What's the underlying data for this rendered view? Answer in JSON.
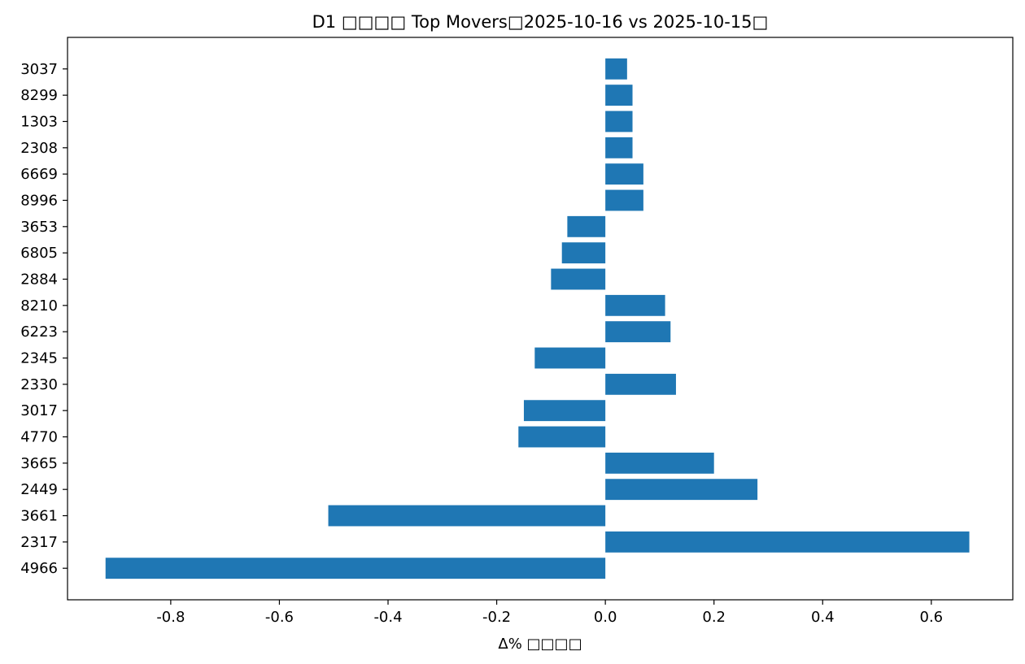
{
  "chart_data": {
    "type": "bar",
    "orientation": "horizontal",
    "title": "D1 □□□□ Top Movers□2025-10-16 vs 2025-10-15□",
    "xlabel": "Δ% □□□□",
    "ylabel": "",
    "xlim": [
      -0.99,
      0.75
    ],
    "xticks": [
      -0.8,
      -0.6,
      -0.4,
      -0.2,
      0.0,
      0.2,
      0.4,
      0.6
    ],
    "xtick_labels": [
      "-0.8",
      "-0.6",
      "-0.4",
      "-0.2",
      "0.0",
      "0.2",
      "0.4",
      "0.6"
    ],
    "grid": false,
    "bar_color": "#1f77b4",
    "categories": [
      "4966",
      "2317",
      "3661",
      "2449",
      "3665",
      "4770",
      "3017",
      "2330",
      "2345",
      "6223",
      "8210",
      "2884",
      "6805",
      "3653",
      "8996",
      "6669",
      "2308",
      "1303",
      "8299",
      "3037"
    ],
    "values": [
      -0.92,
      0.67,
      -0.51,
      0.28,
      0.2,
      -0.16,
      -0.15,
      0.13,
      -0.13,
      0.12,
      0.11,
      -0.1,
      -0.08,
      -0.07,
      0.07,
      0.07,
      0.05,
      0.05,
      0.05,
      0.04
    ]
  }
}
